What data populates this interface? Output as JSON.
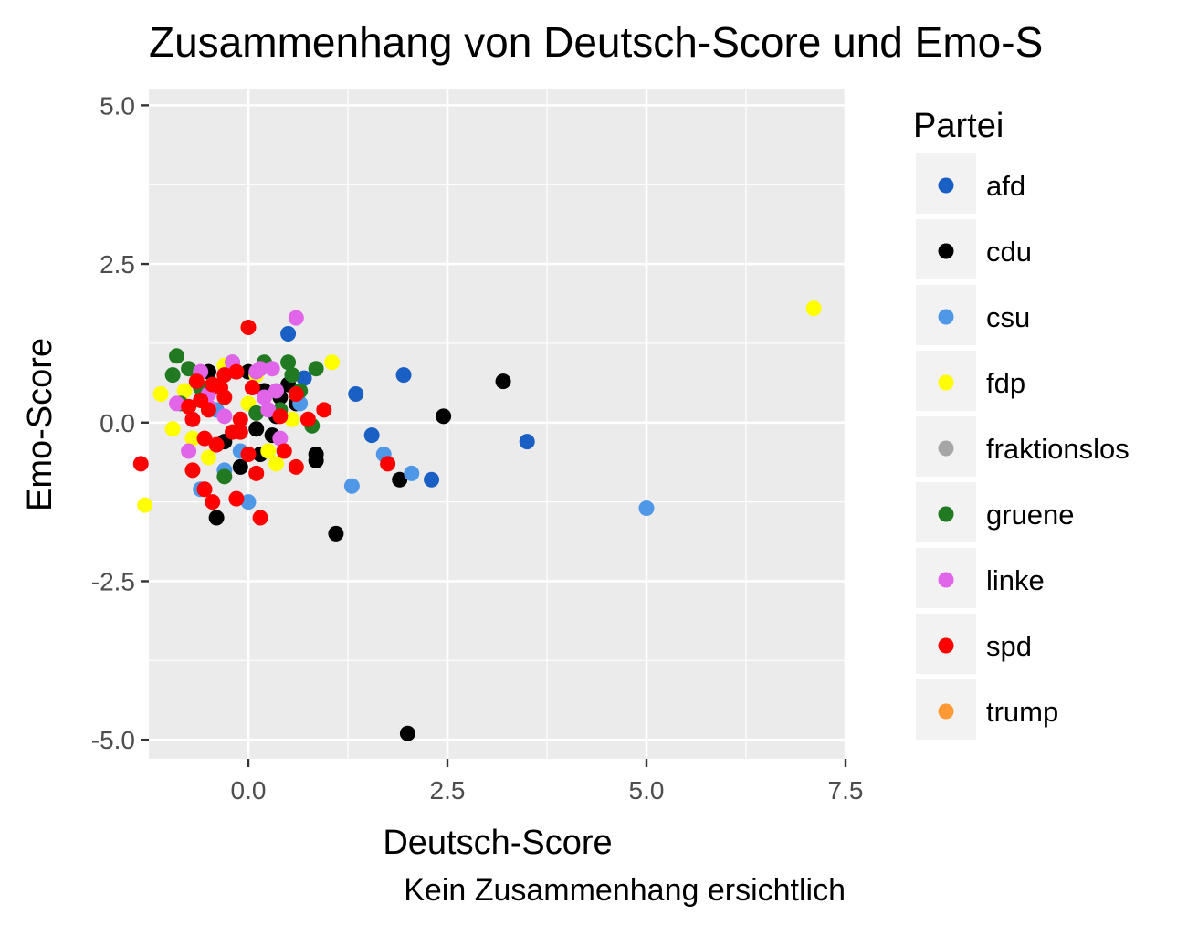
{
  "chart_data": {
    "type": "scatter",
    "title": "Zusammenhang von Deutsch-Score und Emo-S",
    "xlabel": "Deutsch-Score",
    "ylabel": "Emo-Score",
    "caption": "Kein Zusammenhang ersichtlich",
    "xlim": [
      -1.25,
      7.5
    ],
    "ylim": [
      -5.3,
      5.25
    ],
    "x_ticks": [
      0.0,
      2.5,
      5.0,
      7.5
    ],
    "x_tick_labels": [
      "0.0",
      "2.5",
      "5.0",
      "7.5"
    ],
    "y_ticks": [
      5.0,
      2.5,
      0.0,
      -2.5,
      -5.0
    ],
    "y_tick_labels": [
      "5.0",
      "2.5",
      "0.0",
      "-2.5",
      "-5.0"
    ],
    "grid": true,
    "panel_background": "#ebebeb",
    "legend": {
      "title": "Partei",
      "position": "right",
      "entries": [
        {
          "label": "afd",
          "color": "#1a5fc4"
        },
        {
          "label": "cdu",
          "color": "#000000"
        },
        {
          "label": "csu",
          "color": "#4f98e8"
        },
        {
          "label": "fdp",
          "color": "#ffff00"
        },
        {
          "label": "fraktionslos",
          "color": "#a6a6a6"
        },
        {
          "label": "gruene",
          "color": "#217a21"
        },
        {
          "label": "linke",
          "color": "#e065e8"
        },
        {
          "label": "spd",
          "color": "#ff0000"
        },
        {
          "label": "trump",
          "color": "#ff9933"
        }
      ]
    },
    "series": [
      {
        "name": "afd",
        "color": "#1a5fc4",
        "points": [
          [
            0.5,
            1.4
          ],
          [
            1.95,
            0.75
          ],
          [
            1.35,
            0.45
          ],
          [
            1.55,
            -0.2
          ],
          [
            2.3,
            -0.9
          ],
          [
            3.5,
            -0.3
          ],
          [
            0.7,
            0.7
          ]
        ]
      },
      {
        "name": "cdu",
        "color": "#000000",
        "points": [
          [
            3.2,
            0.65
          ],
          [
            2.45,
            0.1
          ],
          [
            1.9,
            -0.9
          ],
          [
            2.0,
            -4.9
          ],
          [
            1.1,
            -1.75
          ],
          [
            -0.4,
            -1.5
          ],
          [
            0.85,
            -0.5
          ],
          [
            0.85,
            -0.6
          ],
          [
            -0.1,
            -0.7
          ],
          [
            0.0,
            0.8
          ],
          [
            0.2,
            0.5
          ],
          [
            0.3,
            -0.2
          ],
          [
            0.5,
            0.6
          ],
          [
            0.1,
            -0.1
          ],
          [
            -0.5,
            0.8
          ],
          [
            0.15,
            -0.5
          ],
          [
            0.6,
            0.3
          ],
          [
            0.35,
            0.1
          ],
          [
            -0.3,
            -0.3
          ],
          [
            0.4,
            0.4
          ]
        ]
      },
      {
        "name": "csu",
        "color": "#4f98e8",
        "points": [
          [
            5.0,
            -1.35
          ],
          [
            1.3,
            -1.0
          ],
          [
            2.05,
            -0.8
          ],
          [
            1.7,
            -0.5
          ],
          [
            0.0,
            -1.25
          ],
          [
            -0.6,
            -1.05
          ],
          [
            -0.3,
            -0.75
          ],
          [
            -0.1,
            -0.45
          ],
          [
            0.65,
            0.3
          ],
          [
            -0.4,
            0.2
          ]
        ]
      },
      {
        "name": "fdp",
        "color": "#ffff00",
        "points": [
          [
            7.1,
            1.8
          ],
          [
            -1.3,
            -1.3
          ],
          [
            -1.1,
            0.45
          ],
          [
            -0.95,
            -0.1
          ],
          [
            1.05,
            0.95
          ],
          [
            0.35,
            -0.65
          ],
          [
            -0.5,
            -0.55
          ],
          [
            0.0,
            0.3
          ],
          [
            -0.3,
            0.9
          ],
          [
            -0.8,
            0.5
          ],
          [
            0.25,
            -0.45
          ],
          [
            0.55,
            0.05
          ],
          [
            -0.7,
            -0.25
          ],
          [
            0.1,
            0.75
          ]
        ]
      },
      {
        "name": "gruene",
        "color": "#217a21",
        "points": [
          [
            -0.9,
            1.05
          ],
          [
            -0.95,
            0.75
          ],
          [
            0.5,
            0.95
          ],
          [
            0.85,
            0.85
          ],
          [
            0.55,
            0.75
          ],
          [
            0.8,
            -0.05
          ],
          [
            -0.3,
            -0.85
          ],
          [
            0.1,
            0.15
          ],
          [
            -0.6,
            0.55
          ],
          [
            0.2,
            0.95
          ],
          [
            0.65,
            0.5
          ],
          [
            -0.2,
            0.95
          ],
          [
            -0.85,
            0.3
          ],
          [
            0.4,
            0.2
          ],
          [
            -0.75,
            0.85
          ]
        ]
      },
      {
        "name": "linke",
        "color": "#e065e8",
        "points": [
          [
            0.6,
            1.65
          ],
          [
            -0.2,
            0.95
          ],
          [
            0.3,
            0.85
          ],
          [
            -0.75,
            -0.45
          ],
          [
            -0.5,
            0.25
          ],
          [
            0.4,
            -0.25
          ],
          [
            0.2,
            0.4
          ],
          [
            -0.9,
            0.3
          ],
          [
            0.1,
            0.8
          ],
          [
            -0.6,
            0.8
          ],
          [
            0.35,
            0.5
          ],
          [
            -0.3,
            0.1
          ],
          [
            0.25,
            0.2
          ],
          [
            -0.5,
            0.45
          ],
          [
            0.15,
            0.85
          ]
        ]
      },
      {
        "name": "spd",
        "color": "#ff0000",
        "points": [
          [
            0.0,
            1.5
          ],
          [
            -1.35,
            -0.65
          ],
          [
            -0.7,
            -0.75
          ],
          [
            -0.55,
            -1.05
          ],
          [
            -0.45,
            -1.25
          ],
          [
            -0.15,
            -1.2
          ],
          [
            0.15,
            -1.5
          ],
          [
            1.75,
            -0.65
          ],
          [
            0.6,
            -0.7
          ],
          [
            0.45,
            -0.45
          ],
          [
            0.95,
            0.2
          ],
          [
            0.75,
            0.05
          ],
          [
            0.6,
            0.45
          ],
          [
            0.4,
            0.1
          ],
          [
            -0.65,
            0.65
          ],
          [
            -0.5,
            0.2
          ],
          [
            -0.35,
            0.55
          ],
          [
            -0.2,
            -0.15
          ],
          [
            -0.3,
            0.75
          ],
          [
            -0.1,
            0.05
          ],
          [
            0.05,
            0.55
          ],
          [
            -0.4,
            -0.35
          ],
          [
            -0.55,
            -0.25
          ],
          [
            -0.75,
            0.25
          ],
          [
            -0.6,
            0.35
          ],
          [
            -0.1,
            -0.15
          ],
          [
            0.1,
            -0.8
          ],
          [
            -0.3,
            0.4
          ],
          [
            -0.7,
            0.05
          ],
          [
            -0.45,
            0.6
          ],
          [
            0.0,
            -0.5
          ],
          [
            -0.15,
            0.8
          ]
        ]
      }
    ]
  }
}
